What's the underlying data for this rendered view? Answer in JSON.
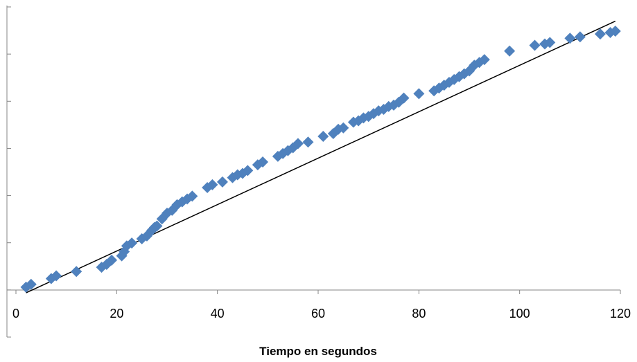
{
  "chart_data": {
    "type": "scatter",
    "title": "",
    "xlabel": "Tiempo en segundos",
    "ylabel": "",
    "xlim": [
      0,
      120
    ],
    "ylim": [
      0,
      1
    ],
    "x_ticks": [
      0,
      20,
      40,
      60,
      80,
      100,
      120
    ],
    "x_tick_labels": [
      "0",
      "20",
      "40",
      "60",
      "80",
      "100",
      "120"
    ],
    "y_tick_count": 7,
    "y_tick_labels_shown": false,
    "grid": false,
    "legend": "none",
    "marker_color": "#4F81BD",
    "trendline_color": "#000000",
    "series": [
      {
        "marker": "diamond",
        "x": [
          2,
          3,
          7,
          8,
          12,
          17,
          18,
          19,
          21,
          21.5,
          22,
          23,
          25,
          26,
          27,
          27.5,
          28,
          29,
          30,
          31,
          32,
          33,
          34,
          35,
          38,
          39,
          41,
          43,
          44,
          45,
          46,
          48,
          49,
          52,
          53,
          54,
          55,
          56,
          58,
          61,
          63,
          64,
          65,
          67,
          68,
          69,
          70,
          71,
          72,
          73,
          74,
          75,
          76,
          77,
          80,
          83,
          84,
          85,
          86,
          87,
          88,
          89,
          90,
          91,
          92,
          93,
          98,
          103,
          105,
          106,
          110,
          112,
          116,
          118,
          119
        ],
        "y": [
          0.01,
          0.02,
          0.04,
          0.05,
          0.065,
          0.08,
          0.09,
          0.105,
          0.12,
          0.135,
          0.155,
          0.165,
          0.18,
          0.19,
          0.21,
          0.22,
          0.225,
          0.25,
          0.27,
          0.28,
          0.3,
          0.31,
          0.32,
          0.33,
          0.36,
          0.37,
          0.38,
          0.395,
          0.405,
          0.41,
          0.42,
          0.44,
          0.45,
          0.47,
          0.48,
          0.49,
          0.5,
          0.515,
          0.52,
          0.54,
          0.55,
          0.565,
          0.57,
          0.59,
          0.595,
          0.605,
          0.61,
          0.62,
          0.63,
          0.635,
          0.645,
          0.65,
          0.66,
          0.675,
          0.69,
          0.7,
          0.71,
          0.72,
          0.73,
          0.74,
          0.75,
          0.76,
          0.77,
          0.79,
          0.8,
          0.81,
          0.84,
          0.86,
          0.865,
          0.87,
          0.885,
          0.89,
          0.9,
          0.905,
          0.91
        ]
      }
    ],
    "trendline": {
      "type": "linear",
      "x": [
        2,
        119
      ],
      "y": [
        -0.01,
        0.945
      ]
    }
  }
}
